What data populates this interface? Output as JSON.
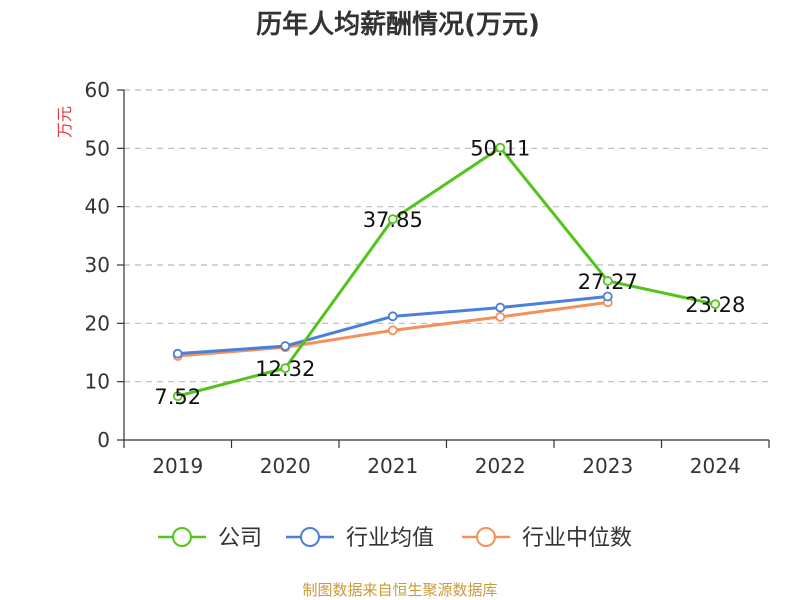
{
  "chart_data": {
    "type": "line",
    "title": "历年人均薪酬情况(万元)",
    "xlabel": "",
    "ylabel": "万元",
    "categories": [
      "2019",
      "2020",
      "2021",
      "2022",
      "2023",
      "2024"
    ],
    "ylim": [
      0,
      60
    ],
    "yticks": [
      0,
      10,
      20,
      30,
      40,
      50,
      60
    ],
    "grid": true,
    "legend_position": "bottom",
    "series": [
      {
        "name": "公司",
        "color": "#52c41a",
        "values": [
          7.52,
          12.32,
          37.85,
          50.11,
          27.27,
          23.28
        ],
        "labels": [
          "7.52",
          "12.32",
          "37.85",
          "50.11",
          "27.27",
          "23.28"
        ],
        "show_labels": true
      },
      {
        "name": "行业均值",
        "color": "#4a7fdc",
        "values": [
          14.8,
          16.1,
          21.2,
          22.7,
          24.6,
          null
        ],
        "show_labels": false
      },
      {
        "name": "行业中位数",
        "color": "#f5905a",
        "values": [
          14.4,
          15.9,
          18.8,
          21.1,
          23.6,
          null
        ],
        "show_labels": false
      }
    ],
    "source": "制图数据来自恒生聚源数据库",
    "ylabel_color": "#e0393e",
    "source_color": "#c89b3c",
    "axis_color": "#333333",
    "grid_color": "#bbbbbb"
  }
}
